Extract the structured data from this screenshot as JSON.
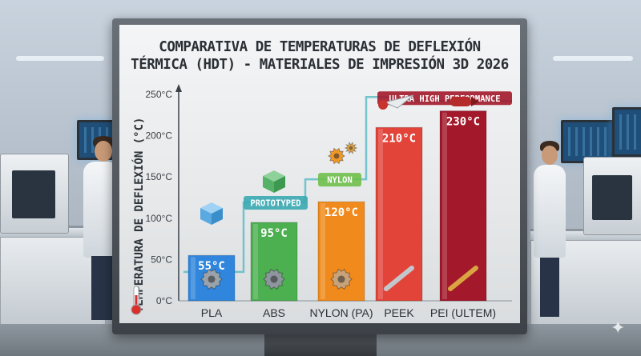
{
  "title_line1": "COMPARATIVA DE TEMPERATURAS DE DEFLEXIÓN",
  "title_line2": "TÉRMICA (HDT) - MATERIALES DE IMPRESIÓN 3D 2026",
  "chart_data": {
    "type": "bar",
    "title": "COMPARATIVA DE TEMPERATURAS DE DEFLEXIÓN TÉRMICA (HDT) - MATERIALES DE IMPRESIÓN 3D 2026",
    "ylabel": "TEMPERATURA DE DEFLEXIÓN (°C)",
    "xlabel": "",
    "categories": [
      "PLA",
      "ABS",
      "NYLON (PA)",
      "PEEK",
      "PEI (ULTEM)"
    ],
    "values": [
      55,
      95,
      120,
      210,
      230
    ],
    "value_labels": [
      "55°C",
      "95°C",
      "120°C",
      "210°C",
      "230°C"
    ],
    "ylim": [
      0,
      250
    ],
    "yticks": [
      0,
      50,
      100,
      150,
      200,
      250
    ],
    "ytick_labels": [
      "0°C",
      "50°C",
      "100°C",
      "150°C",
      "200°C",
      "250°C"
    ],
    "grid": false,
    "bar_colors": [
      "#2f86dc",
      "#4caf50",
      "#f08a1c",
      "#e3443a",
      "#a3182a"
    ],
    "annotations": [
      "PROTOTYPED",
      "NYLON",
      "ULTRA HIGH PERFORMANCE"
    ],
    "annotation_colors": [
      "#3aa8b3",
      "#6fbf4a",
      "#a3182a"
    ]
  }
}
